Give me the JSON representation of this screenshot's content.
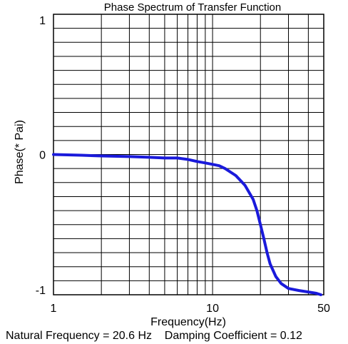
{
  "chart_data": {
    "type": "line",
    "title": "Phase Spectrum of Transfer Function",
    "xlabel": "Frequency(Hz)",
    "ylabel": "Phase(* Pai)",
    "x_scale": "log",
    "xlim": [
      1,
      50
    ],
    "ylim": [
      -1,
      1
    ],
    "x_tick_labels": [
      "1",
      "10",
      "50"
    ],
    "x_tick_values": [
      1,
      10,
      50
    ],
    "y_tick_labels": [
      "1",
      "0",
      "-1"
    ],
    "y_tick_values": [
      1,
      0,
      -1
    ],
    "grid": true,
    "line_color": "#1a1adb",
    "series": [
      {
        "x": [
          1,
          1.5,
          2,
          3,
          4,
          5,
          6,
          7,
          8,
          9,
          10,
          11,
          12,
          14,
          16,
          18,
          19,
          20,
          21,
          22,
          23,
          25,
          27,
          30,
          35,
          40,
          45,
          48
        ],
        "y": [
          0,
          -0.005,
          -0.01,
          -0.015,
          -0.02,
          -0.025,
          -0.025,
          -0.035,
          -0.05,
          -0.06,
          -0.07,
          -0.08,
          -0.1,
          -0.15,
          -0.22,
          -0.32,
          -0.4,
          -0.5,
          -0.6,
          -0.7,
          -0.78,
          -0.87,
          -0.92,
          -0.955,
          -0.97,
          -0.98,
          -0.99,
          -1.0
        ]
      }
    ],
    "footer": "Natural Frequency = 20.6 Hz    Damping Coefficient = 0.12"
  }
}
